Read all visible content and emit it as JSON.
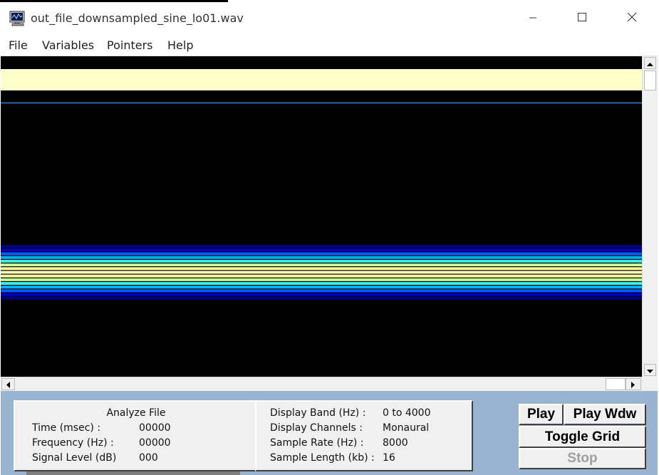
{
  "window": {
    "title": "out_file_downsampled_sine_lo01.wav",
    "controls": {
      "minimize_icon": "minimize-icon",
      "maximize_icon": "maximize-icon",
      "close_icon": "close-icon"
    }
  },
  "menu": [
    {
      "label": "File"
    },
    {
      "label": "Variables"
    },
    {
      "label": "Pointers"
    },
    {
      "label": "Help"
    }
  ],
  "display": {
    "background": "#000000",
    "band_colors": [
      "#000080",
      "#0000cd",
      "#0060ff",
      "#00b4ff",
      "#3cf0e6",
      "#c8ff9c",
      "#fafa96",
      "#ffffc8"
    ],
    "cursor_line_color": "#3a7fd5"
  },
  "analyze": {
    "title": "Analyze File",
    "fields": [
      {
        "label": "Time (msec) :",
        "value": "00000"
      },
      {
        "label": "Frequency (Hz) :",
        "value": "00000"
      },
      {
        "label": "Signal Level (dB)",
        "value": "000"
      }
    ]
  },
  "info": {
    "fields": [
      {
        "label": "Display Band (Hz) :",
        "value": "0 to 4000"
      },
      {
        "label": "Display Channels :",
        "value": "Monaural"
      },
      {
        "label": "Sample Rate (Hz) :",
        "value": "8000"
      },
      {
        "label": "Sample Length (kb) :",
        "value": "16"
      }
    ]
  },
  "buttons": {
    "play": "Play",
    "play_wdw": "Play Wdw",
    "toggle_grid": "Toggle Grid",
    "stop": "Stop"
  },
  "colors": {
    "panel": "#99b4d1",
    "selection_band": "#ffffc8"
  }
}
